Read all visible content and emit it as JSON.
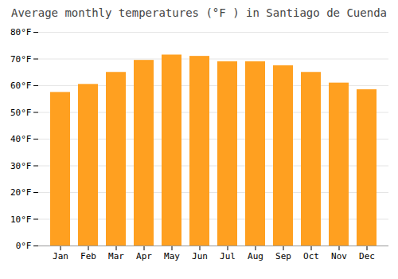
{
  "chart_data": {
    "type": "bar",
    "title": "Average monthly temperatures (°F ) in Santiago de Cuenda",
    "categories": [
      "Jan",
      "Feb",
      "Mar",
      "Apr",
      "May",
      "Jun",
      "Jul",
      "Aug",
      "Sep",
      "Oct",
      "Nov",
      "Dec"
    ],
    "values": [
      57.5,
      60.5,
      65.0,
      69.5,
      71.5,
      71.0,
      69.0,
      69.0,
      67.5,
      65.0,
      61.0,
      58.5
    ],
    "color": "#FFA020",
    "ylim": [
      0,
      80
    ],
    "yticks": [
      {
        "value": 0,
        "label": "0°F"
      },
      {
        "value": 10,
        "label": "10°F"
      },
      {
        "value": 20,
        "label": "20°F"
      },
      {
        "value": 30,
        "label": "30°F"
      },
      {
        "value": 40,
        "label": "40°F"
      },
      {
        "value": 50,
        "label": "50°F"
      },
      {
        "value": 60,
        "label": "60°F"
      },
      {
        "value": 70,
        "label": "70°F"
      },
      {
        "value": 80,
        "label": "80°F"
      }
    ],
    "grid": true
  }
}
